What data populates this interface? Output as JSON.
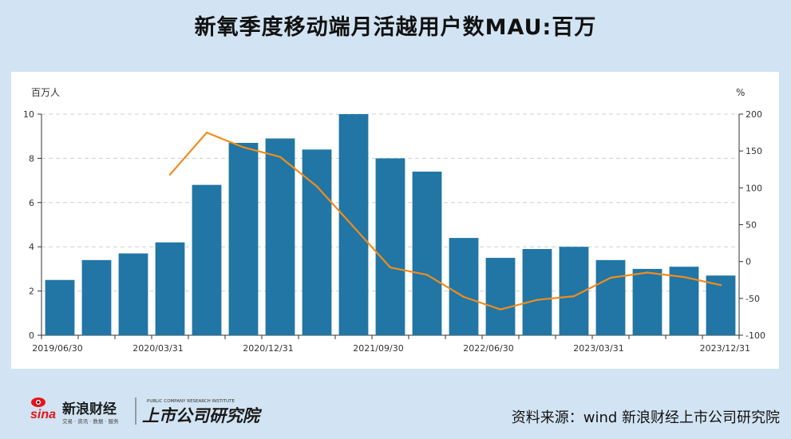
{
  "title": "新氧季度移动端月活越用户数MAU:百万",
  "source": "资料来源：wind 新浪财经上市公司研究院",
  "logo": {
    "brand": "sina",
    "brand_cn": "新浪财经",
    "brand_sub": "交易 · 资讯 · 数据 · 服务",
    "institute": "上市公司研究院",
    "institute_en": "PUBLIC COMPANY RESEARCH INSTITUTE"
  },
  "colors": {
    "bar": "#2176a5",
    "line": "#f08c1e",
    "background": "#d2e4f3"
  },
  "chart_data": {
    "type": "bar",
    "left_unit": "百万人",
    "right_unit": "%",
    "ylim_left": [
      0,
      10
    ],
    "ylim_right": [
      -100,
      200
    ],
    "left_ticks": [
      0,
      2,
      4,
      6,
      8,
      10
    ],
    "right_ticks": [
      -100,
      -50,
      0,
      50,
      100,
      150,
      200
    ],
    "x_tick_labels": [
      "2019/06/30",
      "2020/03/31",
      "2020/12/31",
      "2021/09/30",
      "2022/06/30",
      "2023/03/31",
      "2023/12/31"
    ],
    "grid": true,
    "series": [
      {
        "type": "bar",
        "axis": "left",
        "values": [
          2.5,
          3.4,
          3.7,
          4.2,
          6.8,
          8.7,
          8.9,
          8.4,
          10.0,
          8.0,
          7.4,
          4.4,
          3.5,
          3.9,
          4.0,
          3.4,
          3.0,
          3.1,
          2.7
        ]
      },
      {
        "type": "line",
        "axis": "right",
        "values": [
          null,
          null,
          null,
          118,
          175,
          155,
          142,
          102,
          47,
          -8,
          -18,
          -48,
          -65,
          -52,
          -47,
          -22,
          -15,
          -21,
          -32
        ]
      }
    ]
  }
}
